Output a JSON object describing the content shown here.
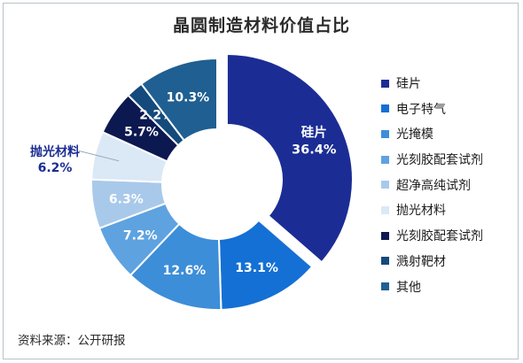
{
  "title": "晶圆制造材料价值占比",
  "source": "资料来源：公开研报",
  "chart_data": {
    "type": "pie",
    "title": "晶圆制造材料价值占比",
    "donut": true,
    "exploded_slice": "硅片",
    "legend_position": "right",
    "unit": "%",
    "slices": [
      {
        "name": "硅片",
        "value": 36.4,
        "color": "#1b2d94",
        "label_color": "#ffffff"
      },
      {
        "name": "电子特气",
        "value": 13.1,
        "color": "#1470d4",
        "label_color": "#ffffff"
      },
      {
        "name": "光掩模",
        "value": 12.6,
        "color": "#3d8ed8",
        "label_color": "#ffffff"
      },
      {
        "name": "光刻胶配套试剂",
        "value": 7.2,
        "color": "#5ea2e0",
        "label_color": "#ffffff"
      },
      {
        "name": "超净高纯试剂",
        "value": 6.3,
        "color": "#a9c9ea",
        "label_color": "#ffffff"
      },
      {
        "name": "抛光材料",
        "value": 6.2,
        "color": "#dbe8f6",
        "label_color": "#1b2d94"
      },
      {
        "name": "光刻胶配套试剂",
        "value": 5.7,
        "color": "#0c1850",
        "label_color": "#ffffff"
      },
      {
        "name": "溅射靶材",
        "value": 2.2,
        "color": "#144a7c",
        "label_color": "#ffffff"
      },
      {
        "name": "其他",
        "value": 10.3,
        "color": "#1f5f92",
        "label_color": "#ffffff"
      }
    ]
  }
}
